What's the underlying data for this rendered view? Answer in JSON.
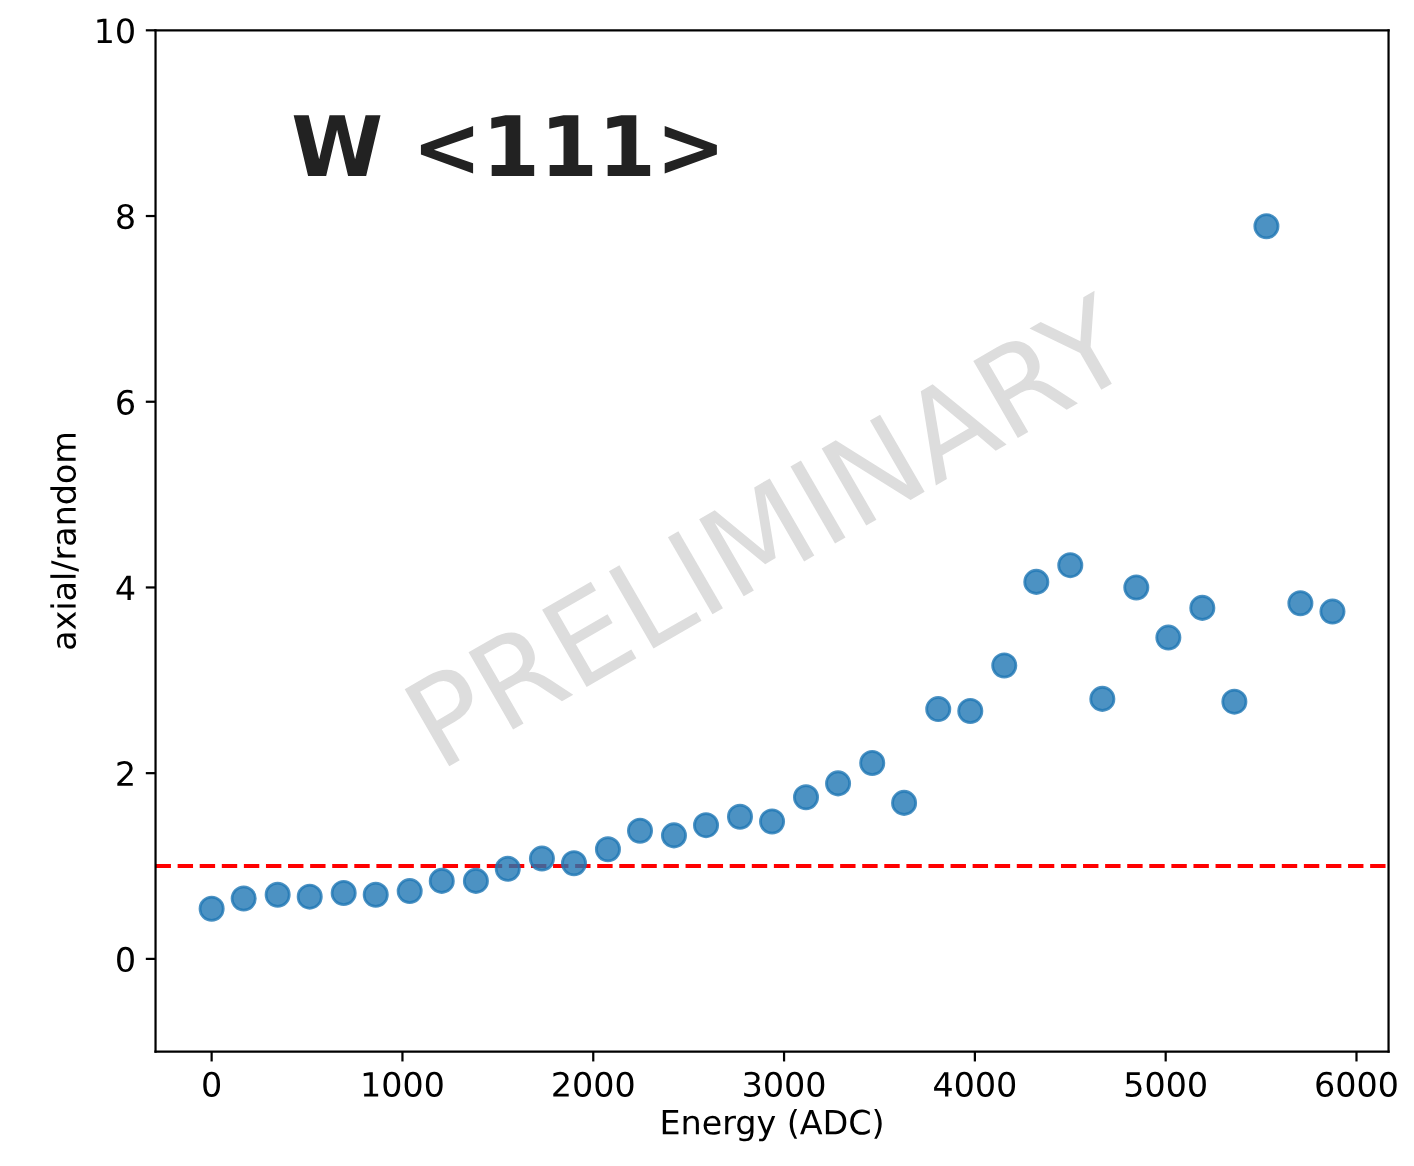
{
  "chart_data": {
    "type": "scatter",
    "xlabel": "Energy (ADC)",
    "ylabel": "axial/random",
    "annotations": [
      "W <111>",
      "PRELIMINARY"
    ],
    "x": [
      0,
      168,
      346,
      514,
      692,
      860,
      1038,
      1206,
      1385,
      1552,
      1731,
      1899,
      2077,
      2245,
      2423,
      2591,
      2769,
      2937,
      3115,
      3283,
      3462,
      3629,
      3808,
      3976,
      4154,
      4322,
      4500,
      4668,
      4846,
      5014,
      5192,
      5360,
      5528,
      5706,
      5874
    ],
    "series": [
      {
        "color": "#1f77b4",
        "values": [
          0.54,
          0.65,
          0.69,
          0.67,
          0.71,
          0.69,
          0.73,
          0.84,
          0.84,
          0.97,
          1.08,
          1.03,
          1.18,
          1.38,
          1.33,
          1.44,
          1.53,
          1.48,
          1.74,
          1.89,
          2.11,
          1.68,
          2.69,
          2.67,
          3.16,
          4.06,
          4.24,
          2.8,
          4.0,
          3.46,
          3.78,
          2.77,
          7.89,
          3.83,
          3.74
        ]
      }
    ],
    "marker": "circle",
    "grid": false,
    "legend": false,
    "xlim": [
      -294,
      6168
    ],
    "xticks": [
      0,
      1000,
      2000,
      3000,
      4000,
      5000,
      6000
    ],
    "ylim": [
      -1,
      10
    ],
    "yticks": [
      0,
      2,
      4,
      6,
      8,
      10
    ],
    "ref_lines": [
      {
        "axis": "y",
        "value": 1,
        "color": "#ff0000",
        "line_style": "dashed"
      }
    ]
  }
}
